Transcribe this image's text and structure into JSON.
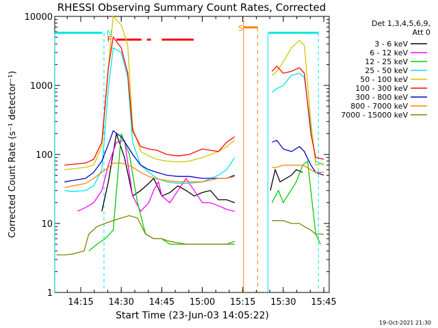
{
  "chart_data": {
    "type": "line",
    "title": "RHESSI Observing Summary Count Rates, Corrected",
    "xlabel": "Start Time (23-Jun-03 14:05:22)",
    "ylabel": "Corrected Count Rate (s⁻¹ detector⁻¹)",
    "yscale": "log",
    "ylim": [
      1,
      10000
    ],
    "xlim_minutes": [
      "14:05:22",
      "15:47"
    ],
    "xtick_labels": [
      "14:15",
      "14:30",
      "14:45",
      "15:00",
      "15:15",
      "15:30",
      "15:45"
    ],
    "ytick_labels": [
      "1",
      "10",
      "100",
      "1000",
      "10000"
    ],
    "legend_title": "Det 1,3,4,5,6,9,",
    "legend_subtitle": "Att 0",
    "legend_position": "right",
    "footer": "19-Oct-2021 21:30",
    "markers": {
      "N": "N",
      "F": "F",
      "S": "S"
    },
    "colors": {
      "night": "#00e5e5",
      "flare": "#ff0000",
      "saa": "#ff8000",
      "axis": "#000000"
    },
    "series": [
      {
        "name": "3 - 6 keV",
        "color": "#000000",
        "points": [
          [
            14.32,
            0
          ],
          [
            14.33,
            0
          ],
          [
            14.38,
            15
          ],
          [
            14.42,
            40
          ],
          [
            14.47,
            200
          ],
          [
            14.52,
            90
          ],
          [
            14.57,
            25
          ],
          [
            14.62,
            30
          ],
          [
            14.67,
            38
          ],
          [
            14.7,
            45
          ],
          [
            14.73,
            32
          ],
          [
            14.75,
            25
          ],
          [
            14.8,
            28
          ],
          [
            14.85,
            35
          ],
          [
            14.9,
            30
          ],
          [
            14.95,
            25
          ],
          [
            15.0,
            28
          ],
          [
            15.05,
            30
          ],
          [
            15.1,
            22
          ],
          [
            15.15,
            22
          ],
          [
            15.2,
            20
          ],
          [
            15.25,
            null
          ],
          [
            15.4,
            null
          ],
          [
            15.42,
            30
          ],
          [
            15.45,
            60
          ],
          [
            15.48,
            40
          ],
          [
            15.55,
            50
          ],
          [
            15.58,
            60
          ],
          [
            15.62,
            55
          ]
        ]
      },
      {
        "name": "6 - 12 keV",
        "color": "#ff00ff",
        "points": [
          [
            14.23,
            15
          ],
          [
            14.28,
            17
          ],
          [
            14.33,
            20
          ],
          [
            14.38,
            30
          ],
          [
            14.42,
            70
          ],
          [
            14.47,
            150
          ],
          [
            14.52,
            160
          ],
          [
            14.57,
            25
          ],
          [
            14.62,
            15
          ],
          [
            14.67,
            20
          ],
          [
            14.7,
            30
          ],
          [
            14.73,
            40
          ],
          [
            14.75,
            25
          ],
          [
            14.8,
            20
          ],
          [
            14.85,
            30
          ],
          [
            14.9,
            45
          ],
          [
            14.95,
            30
          ],
          [
            15.0,
            20
          ],
          [
            15.05,
            20
          ],
          [
            15.1,
            18
          ],
          [
            15.15,
            16
          ],
          [
            15.2,
            15
          ]
        ]
      },
      {
        "name": "12 - 25 keV",
        "color": "#00cc00",
        "points": [
          [
            14.3,
            4
          ],
          [
            14.35,
            5
          ],
          [
            14.4,
            6
          ],
          [
            14.45,
            8
          ],
          [
            14.5,
            200
          ],
          [
            14.55,
            100
          ],
          [
            14.6,
            20
          ],
          [
            14.65,
            7
          ],
          [
            14.7,
            6
          ],
          [
            14.75,
            6
          ],
          [
            14.8,
            5
          ],
          [
            14.9,
            5
          ],
          [
            15.0,
            5
          ],
          [
            15.1,
            5
          ],
          [
            15.2,
            5
          ],
          [
            15.25,
            null
          ],
          [
            15.4,
            null
          ],
          [
            15.43,
            20
          ],
          [
            15.47,
            30
          ],
          [
            15.5,
            20
          ],
          [
            15.58,
            40
          ],
          [
            15.62,
            70
          ],
          [
            15.65,
            80
          ],
          [
            15.7,
            7
          ],
          [
            15.73,
            5
          ]
        ]
      },
      {
        "name": "25 - 50 keV",
        "color": "#00e5e5",
        "points": [
          [
            14.15,
            30
          ],
          [
            14.2,
            29
          ],
          [
            14.28,
            30
          ],
          [
            14.33,
            35
          ],
          [
            14.38,
            60
          ],
          [
            14.42,
            900
          ],
          [
            14.45,
            3500
          ],
          [
            14.5,
            3000
          ],
          [
            14.54,
            1300
          ],
          [
            14.57,
            150
          ],
          [
            14.62,
            70
          ],
          [
            14.67,
            55
          ],
          [
            14.72,
            45
          ],
          [
            14.78,
            40
          ],
          [
            14.85,
            38
          ],
          [
            14.92,
            38
          ],
          [
            15.0,
            40
          ],
          [
            15.1,
            50
          ],
          [
            15.15,
            60
          ],
          [
            15.2,
            90
          ],
          [
            15.25,
            null
          ],
          [
            15.4,
            null
          ],
          [
            15.43,
            800
          ],
          [
            15.46,
            900
          ],
          [
            15.5,
            1000
          ],
          [
            15.55,
            1400
          ],
          [
            15.6,
            1500
          ],
          [
            15.63,
            1300
          ],
          [
            15.67,
            250
          ],
          [
            15.7,
            80
          ],
          [
            15.75,
            70
          ]
        ]
      },
      {
        "name": "50 - 100 keV",
        "color": "#d4c400",
        "points": [
          [
            14.15,
            60
          ],
          [
            14.2,
            62
          ],
          [
            14.28,
            65
          ],
          [
            14.33,
            70
          ],
          [
            14.38,
            130
          ],
          [
            14.42,
            1800
          ],
          [
            14.45,
            10000
          ],
          [
            14.5,
            7500
          ],
          [
            14.54,
            3800
          ],
          [
            14.57,
            250
          ],
          [
            14.62,
            110
          ],
          [
            14.67,
            95
          ],
          [
            14.72,
            85
          ],
          [
            14.78,
            80
          ],
          [
            14.85,
            78
          ],
          [
            14.92,
            80
          ],
          [
            15.0,
            90
          ],
          [
            15.1,
            110
          ],
          [
            15.15,
            130
          ],
          [
            15.2,
            160
          ],
          [
            15.25,
            null
          ],
          [
            15.4,
            null
          ],
          [
            15.43,
            1400
          ],
          [
            15.46,
            1600
          ],
          [
            15.5,
            2200
          ],
          [
            15.55,
            3500
          ],
          [
            15.6,
            4500
          ],
          [
            15.63,
            3800
          ],
          [
            15.67,
            300
          ],
          [
            15.7,
            70
          ],
          [
            15.75,
            75
          ]
        ]
      },
      {
        "name": "100 - 300 keV",
        "color": "#ff0000",
        "points": [
          [
            14.15,
            70
          ],
          [
            14.2,
            72
          ],
          [
            14.28,
            75
          ],
          [
            14.33,
            85
          ],
          [
            14.38,
            150
          ],
          [
            14.42,
            1800
          ],
          [
            14.45,
            5000
          ],
          [
            14.5,
            3500
          ],
          [
            14.54,
            1500
          ],
          [
            14.57,
            220
          ],
          [
            14.62,
            130
          ],
          [
            14.67,
            120
          ],
          [
            14.72,
            115
          ],
          [
            14.78,
            100
          ],
          [
            14.85,
            95
          ],
          [
            14.92,
            100
          ],
          [
            15.0,
            120
          ],
          [
            15.1,
            110
          ],
          [
            15.15,
            150
          ],
          [
            15.2,
            180
          ],
          [
            15.25,
            null
          ],
          [
            15.4,
            null
          ],
          [
            15.43,
            1600
          ],
          [
            15.46,
            1900
          ],
          [
            15.5,
            1500
          ],
          [
            15.55,
            1600
          ],
          [
            15.6,
            1800
          ],
          [
            15.63,
            1500
          ],
          [
            15.67,
            200
          ],
          [
            15.7,
            90
          ],
          [
            15.75,
            85
          ]
        ]
      },
      {
        "name": "300 - 800 keV",
        "color": "#0000cc",
        "points": [
          [
            14.15,
            40
          ],
          [
            14.2,
            42
          ],
          [
            14.28,
            45
          ],
          [
            14.33,
            55
          ],
          [
            14.38,
            80
          ],
          [
            14.42,
            140
          ],
          [
            14.45,
            220
          ],
          [
            14.5,
            180
          ],
          [
            14.54,
            130
          ],
          [
            14.57,
            100
          ],
          [
            14.62,
            70
          ],
          [
            14.67,
            60
          ],
          [
            14.72,
            55
          ],
          [
            14.78,
            50
          ],
          [
            14.85,
            48
          ],
          [
            14.92,
            48
          ],
          [
            15.0,
            45
          ],
          [
            15.1,
            45
          ],
          [
            15.15,
            45
          ],
          [
            15.2,
            50
          ],
          [
            15.25,
            null
          ],
          [
            15.4,
            null
          ],
          [
            15.43,
            150
          ],
          [
            15.46,
            160
          ],
          [
            15.5,
            120
          ],
          [
            15.55,
            110
          ],
          [
            15.6,
            130
          ],
          [
            15.63,
            110
          ],
          [
            15.67,
            70
          ],
          [
            15.7,
            55
          ],
          [
            15.75,
            50
          ]
        ]
      },
      {
        "name": "800 - 7000 keV",
        "color": "#ff8000",
        "points": [
          [
            14.15,
            33
          ],
          [
            14.2,
            35
          ],
          [
            14.28,
            38
          ],
          [
            14.33,
            45
          ],
          [
            14.38,
            55
          ],
          [
            14.42,
            65
          ],
          [
            14.45,
            75
          ],
          [
            14.5,
            75
          ],
          [
            14.54,
            70
          ],
          [
            14.57,
            65
          ],
          [
            14.62,
            55
          ],
          [
            14.67,
            48
          ],
          [
            14.72,
            44
          ],
          [
            14.78,
            42
          ],
          [
            14.85,
            40
          ],
          [
            14.92,
            40
          ],
          [
            15.0,
            40
          ],
          [
            15.1,
            45
          ],
          [
            15.15,
            45
          ],
          [
            15.2,
            48
          ],
          [
            15.25,
            null
          ],
          [
            15.4,
            null
          ],
          [
            15.43,
            65
          ],
          [
            15.46,
            65
          ],
          [
            15.5,
            70
          ],
          [
            15.55,
            70
          ],
          [
            15.6,
            70
          ],
          [
            15.63,
            68
          ],
          [
            15.67,
            60
          ],
          [
            15.7,
            55
          ],
          [
            15.75,
            55
          ]
        ]
      },
      {
        "name": "7000 - 15000 keV",
        "color": "#808000",
        "points": [
          [
            14.1,
            3.5
          ],
          [
            14.15,
            3.5
          ],
          [
            14.2,
            3.6
          ],
          [
            14.27,
            4
          ],
          [
            14.3,
            7
          ],
          [
            14.35,
            9
          ],
          [
            14.4,
            10
          ],
          [
            14.45,
            11
          ],
          [
            14.5,
            12
          ],
          [
            14.55,
            13
          ],
          [
            14.6,
            12
          ],
          [
            14.65,
            7
          ],
          [
            14.7,
            6
          ],
          [
            14.75,
            6
          ],
          [
            14.8,
            5.5
          ],
          [
            14.9,
            5
          ],
          [
            15.0,
            5
          ],
          [
            15.1,
            5
          ],
          [
            15.15,
            5
          ],
          [
            15.2,
            5.5
          ],
          [
            15.25,
            null
          ],
          [
            15.4,
            null
          ],
          [
            15.43,
            11
          ],
          [
            15.5,
            11
          ],
          [
            15.55,
            10
          ],
          [
            15.6,
            10
          ],
          [
            15.63,
            9
          ],
          [
            15.67,
            8
          ],
          [
            15.7,
            7
          ],
          [
            15.75,
            7
          ]
        ]
      }
    ]
  }
}
